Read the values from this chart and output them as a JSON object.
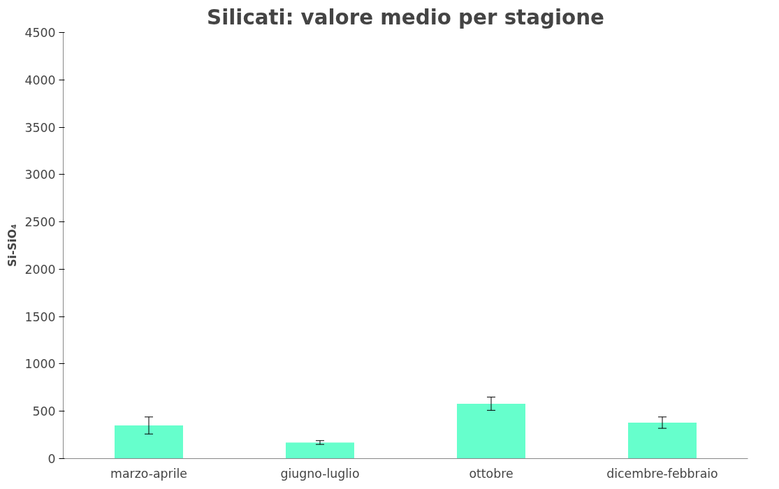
{
  "chart_data": {
    "type": "bar",
    "title": "Silicati: valore medio per stagione",
    "ylabel": "Si-SiO₄",
    "categories": [
      "marzo-aprile",
      "giugno-luglio",
      "ottobre",
      "dicembre-febbraio"
    ],
    "values": [
      350,
      170,
      580,
      380
    ],
    "errors": [
      90,
      20,
      70,
      60
    ],
    "color": "#66ffcc",
    "ylim": [
      0,
      4500
    ],
    "yticks": [
      0,
      500,
      1000,
      1500,
      2000,
      2500,
      3000,
      3500,
      4000,
      4500
    ],
    "grid": false
  }
}
